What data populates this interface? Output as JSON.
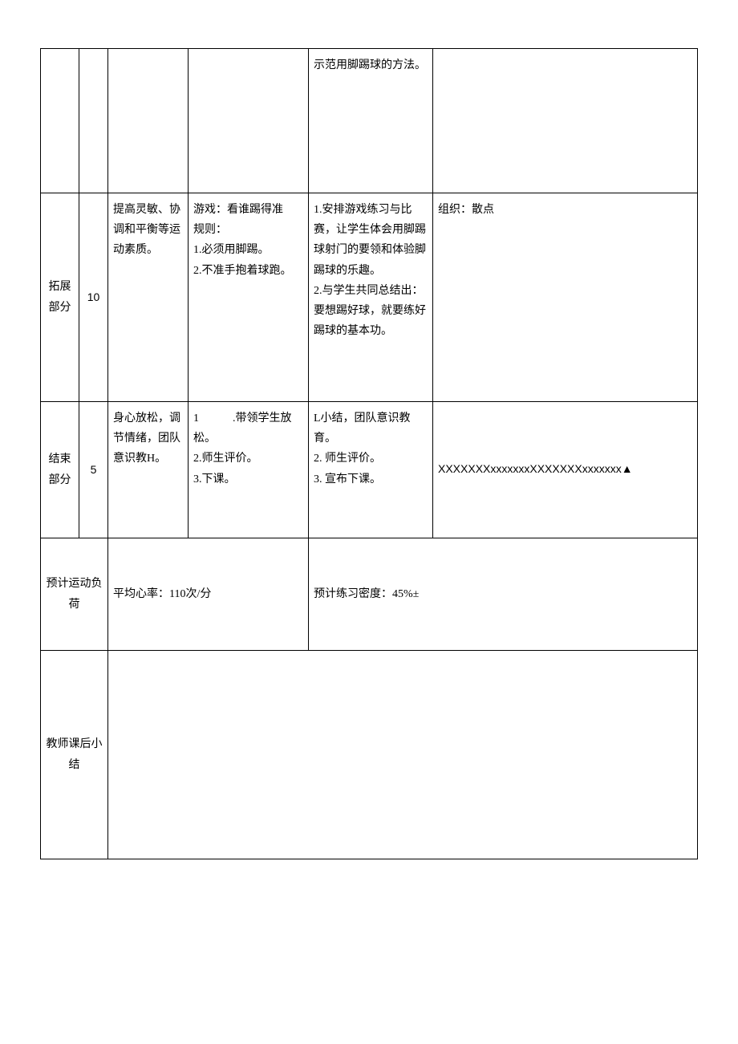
{
  "rows": {
    "row1": {
      "teach": "示范用脚踢球的方法。"
    },
    "row2": {
      "section": "拓展部分",
      "time": "10",
      "goal": "提高灵敏、协调和平衡等运动素质。",
      "content_title": "游戏：看谁踢得准",
      "content_rule": "规则：",
      "content_l1": "1.必须用脚踢。",
      "content_l2": "2.不准手抱着球跑。",
      "teach_l1": "1.安排游戏练习与比赛，让学生体会用脚踢球射门的要领和体验脚踢球的乐趣。",
      "teach_l2": "2.与学生共同总结出：要想踢好球，就要练好踢球的基本功。",
      "org": "组织：散点"
    },
    "row3": {
      "section": "结束部分",
      "time": "5",
      "goal": "身心放松，调节情绪，团队意识教H。",
      "content_l1": "1　　　.带领学生放松。",
      "content_l2": "2.师生评价。",
      "content_l3": "3.下课。",
      "teach_l1": "L小结，团队意识教育。",
      "teach_l2": "2. 师生评价。",
      "teach_l3": "3. 宣布下课。",
      "org": "XXXXXXXxxxxxxxXXXXXXXxxxxxxx▲"
    },
    "row4": {
      "label": "预计运动负荷",
      "heart_rate": "平均心率：110次/分",
      "density": "预计练习密度：45%±"
    },
    "row5": {
      "label": "教师课后小结"
    }
  }
}
